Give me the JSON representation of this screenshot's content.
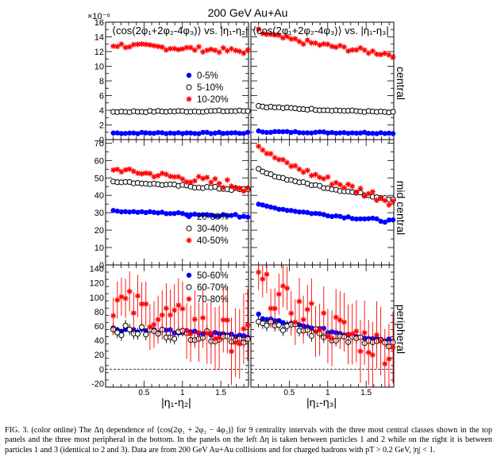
{
  "figure": {
    "title": "200 GeV Au+Au",
    "y_exponent": "×10⁻⁶",
    "observable_left": "⟨cos(2φ₁+2φ₂-4φ₃)⟩ vs. |η₁-η₂|",
    "observable_right": "⟨cos(2φ₁+2φ₂-4φ₃)⟩ vs. |η₁-η₃|",
    "xlabel_left": "|η₁-η₂|",
    "xlabel_right": "|η₁-η₃|",
    "x_ticks": [
      "0.5",
      "1",
      "1.5"
    ],
    "row_labels": [
      "central",
      "mid central",
      "peripheral"
    ]
  },
  "caption": "FIG. 3. (color online) The Δη dependence of ⟨cos(2φ₁ + 2φ₂ − 4φ₃)⟩ for 9 centrality intervals with the three most central classes shown in the top panels and the three most peripheral in the bottom. In the panels on the left Δη is taken between particles 1 and 2 while on the right it is between particles 1 and 3 (identical to 2 and 3). Data are from 200 GeV Au+Au collisions and for charged hadrons with pT > 0.2 GeV, |η| < 1.",
  "colors": {
    "blue": "#0000ff",
    "red": "#ff0000",
    "black": "#000000"
  },
  "chart_data": [
    {
      "type": "scatter",
      "panel": "central, |η₁-η₂|",
      "x_range": [
        0.08,
        1.8
      ],
      "ylim": [
        0,
        16
      ],
      "y_ticks": [
        0,
        2,
        4,
        6,
        8,
        10,
        12,
        14,
        16
      ],
      "legend": "right",
      "series": [
        {
          "name": "0-5%",
          "marker": "filled-circle",
          "color": "#0000ff",
          "y_start": 0.9,
          "y_end": 0.9
        },
        {
          "name": "5-10%",
          "marker": "open-circle",
          "color": "#000000",
          "y_start": 3.8,
          "y_end": 3.9
        },
        {
          "name": "10-20%",
          "marker": "star",
          "color": "#ff0000",
          "y_start": 12.9,
          "y_end": 12.0
        }
      ]
    },
    {
      "type": "scatter",
      "panel": "central, |η₁-η₃|",
      "x_range": [
        0.08,
        1.8
      ],
      "ylim": [
        0,
        16
      ],
      "series": [
        {
          "name": "0-5%",
          "marker": "filled-circle",
          "color": "#0000ff",
          "y_start": 1.1,
          "y_end": 0.9
        },
        {
          "name": "5-10%",
          "marker": "open-circle",
          "color": "#000000",
          "y_start": 4.6,
          "y_end": 3.7
        },
        {
          "name": "10-20%",
          "marker": "star",
          "color": "#ff0000",
          "y_start": 14.8,
          "y_end": 11.6
        }
      ]
    },
    {
      "type": "scatter",
      "panel": "mid central, |η₁-η₂|",
      "x_range": [
        0.08,
        1.8
      ],
      "ylim": [
        0,
        72
      ],
      "y_ticks": [
        0,
        10,
        20,
        30,
        40,
        50,
        60,
        70
      ],
      "legend": "bottom-right",
      "series": [
        {
          "name": "20-30%",
          "marker": "filled-circle",
          "color": "#0000ff",
          "y_start": 31,
          "y_end": 28
        },
        {
          "name": "30-40%",
          "marker": "open-circle",
          "color": "#000000",
          "y_start": 48,
          "y_end": 43
        },
        {
          "name": "40-50%",
          "marker": "star",
          "color": "#ff0000",
          "y_start": 55,
          "y_end": 45
        }
      ]
    },
    {
      "type": "scatter",
      "panel": "mid central, |η₁-η₃|",
      "x_range": [
        0.08,
        1.8
      ],
      "ylim": [
        0,
        72
      ],
      "series": [
        {
          "name": "20-30%",
          "marker": "filled-circle",
          "color": "#0000ff",
          "y_start": 35,
          "y_end": 25
        },
        {
          "name": "30-40%",
          "marker": "open-circle",
          "color": "#000000",
          "y_start": 55,
          "y_end": 38
        },
        {
          "name": "40-50%",
          "marker": "star",
          "color": "#ff0000",
          "y_start": 69,
          "y_end": 37
        }
      ]
    },
    {
      "type": "scatter",
      "panel": "peripheral, |η₁-η₂|",
      "x_range": [
        0.08,
        1.8
      ],
      "ylim": [
        -25,
        145
      ],
      "y_ticks": [
        -20,
        0,
        20,
        40,
        60,
        80,
        100,
        120,
        140
      ],
      "legend": "top-right",
      "zero_line": "dashed",
      "series": [
        {
          "name": "50-60%",
          "marker": "filled-circle",
          "color": "#0000ff",
          "y_start": 56,
          "y_end": 47
        },
        {
          "name": "60-70%",
          "marker": "open-circle",
          "color": "#000000",
          "y_start": 55,
          "y_end": 42
        },
        {
          "name": "70-80%",
          "marker": "star",
          "color": "#ff0000",
          "y_start": 95,
          "y_end": 40
        }
      ]
    },
    {
      "type": "scatter",
      "panel": "peripheral, |η₁-η₃|",
      "x_range": [
        0.08,
        1.8
      ],
      "ylim": [
        -25,
        145
      ],
      "zero_line": "dashed",
      "series": [
        {
          "name": "50-60%",
          "marker": "filled-circle",
          "color": "#0000ff",
          "y_start": 75,
          "y_end": 40
        },
        {
          "name": "60-70%",
          "marker": "open-circle",
          "color": "#000000",
          "y_start": 72,
          "y_end": 32
        },
        {
          "name": "70-80%",
          "marker": "star",
          "color": "#ff0000",
          "y_start": 125,
          "y_end": 25
        }
      ]
    }
  ]
}
